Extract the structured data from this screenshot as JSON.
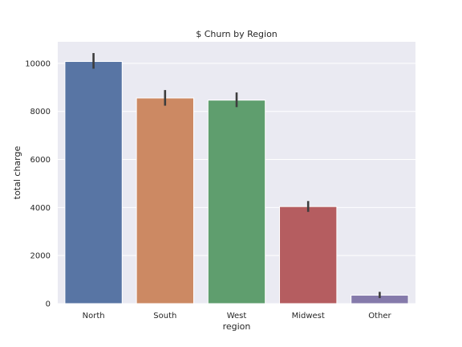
{
  "chart_data": {
    "type": "bar",
    "title": "$ Churn by Region",
    "xlabel": "region",
    "ylabel": "total charge",
    "categories": [
      "North",
      "South",
      "West",
      "Midwest",
      "Other"
    ],
    "values": [
      10080,
      8560,
      8470,
      4040,
      350
    ],
    "error_bars": [
      [
        9780,
        10430
      ],
      [
        8240,
        8890
      ],
      [
        8180,
        8790
      ],
      [
        3820,
        4270
      ],
      [
        230,
        490
      ]
    ],
    "colors": [
      "#5875a4",
      "#cc8963",
      "#5f9e6e",
      "#b55d60",
      "#857aab"
    ],
    "yticks": [
      0,
      2000,
      4000,
      6000,
      8000,
      10000
    ],
    "ylim": [
      0,
      10900
    ],
    "grid": true,
    "background": "#eaeaf2"
  }
}
